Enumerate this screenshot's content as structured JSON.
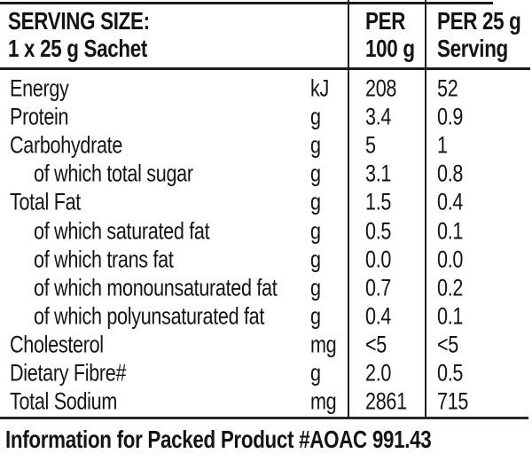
{
  "table": {
    "header": {
      "serving_col": {
        "line1": "SERVING SIZE:",
        "line2": "1 x 25 g Sachet"
      },
      "per100_col": {
        "line1": "PER",
        "line2": "100 g"
      },
      "per25_col": {
        "line1": "PER 25 g",
        "line2": "Serving"
      }
    },
    "rows": [
      {
        "label": "Energy",
        "unit": "kJ",
        "per100": "208",
        "per25": "52"
      },
      {
        "label": "Protein",
        "unit": "g",
        "per100": "3.4",
        "per25": "0.9"
      },
      {
        "label": "Carbohydrate",
        "unit": "g",
        "per100": "5",
        "per25": "1"
      },
      {
        "label": "of which total sugar",
        "unit": "g",
        "per100": "3.1",
        "per25": "0.8"
      },
      {
        "label": "Total Fat",
        "unit": "g",
        "per100": "1.5",
        "per25": "0.4"
      },
      {
        "label": "of which saturated fat",
        "unit": "g",
        "per100": "0.5",
        "per25": "0.1"
      },
      {
        "label": "of which trans fat",
        "unit": "g",
        "per100": "0.0",
        "per25": "0.0"
      },
      {
        "label": "of which monounsaturated fat",
        "unit": "g",
        "per100": "0.7",
        "per25": "0.2"
      },
      {
        "label": "of which polyunsaturated fat",
        "unit": "g",
        "per100": "0.4",
        "per25": "0.1"
      },
      {
        "label": "Cholesterol",
        "unit": "mg",
        "per100": "<5",
        "per25": "<5"
      },
      {
        "label": "Dietary Fibre#",
        "unit": "g",
        "per100": "2.0",
        "per25": "0.5"
      },
      {
        "label": "Total Sodium",
        "unit": "mg",
        "per100": "2861",
        "per25": "715"
      }
    ],
    "footer": {
      "text": "Information for Packed Product #AOAC 991.43"
    },
    "colors": {
      "text": "#141414",
      "rule": "#1c1c1c",
      "background": "#ffffff"
    }
  }
}
